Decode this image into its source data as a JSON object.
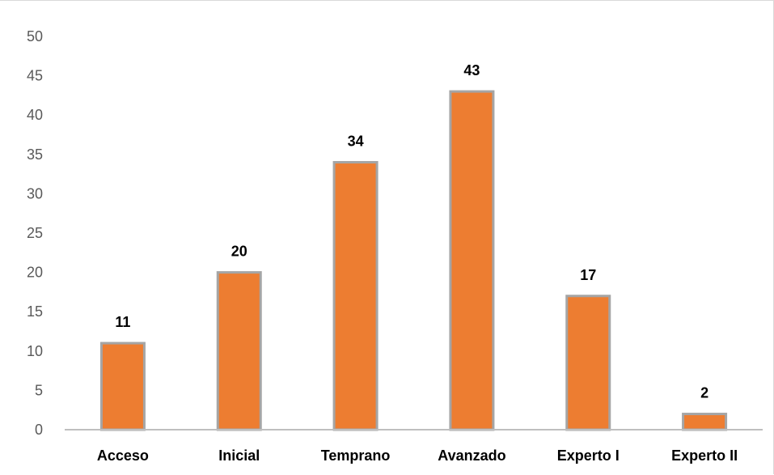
{
  "chart_data": {
    "type": "bar",
    "categories": [
      "Acceso",
      "Inicial",
      "Temprano",
      "Avanzado",
      "Experto I",
      "Experto II"
    ],
    "values": [
      11,
      20,
      34,
      43,
      17,
      2
    ],
    "ylim": [
      0,
      50
    ],
    "yticks": [
      "0",
      "5",
      "10",
      "15",
      "20",
      "25",
      "30",
      "35",
      "40",
      "45",
      "50"
    ],
    "data_labels": [
      "11",
      "20",
      "34",
      "43",
      "17",
      "2"
    ],
    "grid": false,
    "legend": "none",
    "colors": {
      "bar_fill": "#ed7d31",
      "bar_edge": "#a5a5a5",
      "axis": "#bfbfbf"
    }
  }
}
